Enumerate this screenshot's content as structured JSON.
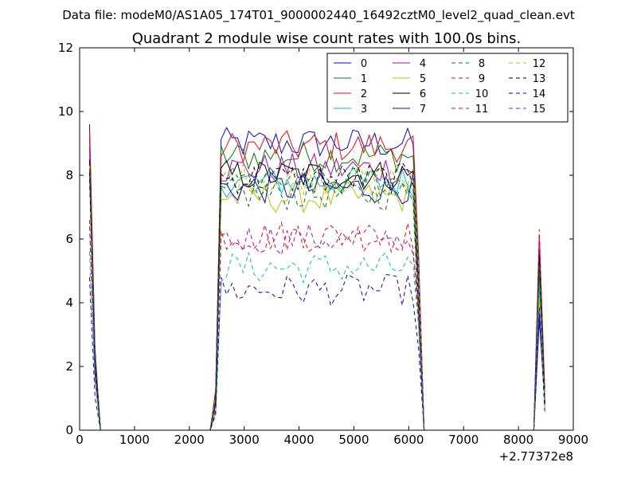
{
  "suptitle": "Data file: modeM0/AS1A05_174T01_9000002440_16492cztM0_level2_quad_clean.evt",
  "chart_data": {
    "type": "line",
    "title": "Quadrant 2 module wise count rates with 100.0s bins.",
    "xlabel": "",
    "ylabel": "",
    "x_offset_label": "+2.77372e8",
    "xlim": [
      0,
      9000
    ],
    "ylim": [
      0,
      12
    ],
    "xticks": [
      0,
      1000,
      2000,
      3000,
      4000,
      5000,
      6000,
      7000,
      8000,
      9000
    ],
    "yticks": [
      0,
      2,
      4,
      6,
      8,
      10,
      12
    ],
    "xtick_labels": [
      "0",
      "1000",
      "2000",
      "3000",
      "4000",
      "5000",
      "6000",
      "7000",
      "8000",
      "9000"
    ],
    "ytick_labels": [
      "0",
      "2",
      "4",
      "6",
      "8",
      "10",
      "12"
    ],
    "grid": false,
    "legend_position": "top-right",
    "legend_columns": 4,
    "profile": {
      "x": [
        180,
        280,
        380,
        480,
        580,
        680,
        780,
        880,
        980,
        1080,
        1180,
        1280,
        1380,
        1480,
        1580,
        1680,
        1780,
        1880,
        1980,
        2080,
        2180,
        2280,
        2380,
        2480,
        2580,
        2680,
        2780,
        2880,
        2980,
        3080,
        3180,
        3280,
        3380,
        3480,
        3580,
        3680,
        3780,
        3880,
        3980,
        4080,
        4180,
        4280,
        4380,
        4480,
        4580,
        4680,
        4780,
        4880,
        4980,
        5080,
        5180,
        5280,
        5380,
        5480,
        5580,
        5680,
        5780,
        5880,
        5980,
        6080,
        6180,
        6280,
        6380,
        6480,
        6580,
        6680,
        6780,
        6880,
        6980,
        7080,
        7180,
        7280,
        7380,
        7480,
        7580,
        7680,
        7780,
        7880,
        7980,
        8080,
        8180,
        8280,
        8380,
        8480
      ],
      "shape": [
        1.0,
        0.27,
        0.0,
        0.0,
        0.0,
        0.0,
        0.0,
        0.0,
        0.0,
        0.0,
        0.0,
        0.0,
        0.0,
        0.0,
        0.0,
        0.0,
        0.0,
        0.0,
        0.0,
        0.0,
        0.0,
        0.0,
        0.0,
        0.12,
        1.0,
        1.0,
        1.0,
        1.0,
        1.0,
        1.0,
        1.0,
        1.0,
        1.0,
        1.0,
        1.0,
        1.0,
        1.0,
        1.0,
        1.0,
        1.0,
        1.0,
        1.0,
        1.0,
        1.0,
        1.0,
        1.0,
        1.0,
        1.0,
        1.0,
        1.0,
        1.0,
        1.0,
        1.0,
        1.0,
        1.0,
        1.0,
        1.0,
        1.0,
        1.0,
        1.0,
        0.55,
        0.0,
        0.0,
        0.0,
        0.0,
        0.0,
        0.0,
        0.0,
        0.0,
        0.0,
        0.0,
        0.0,
        0.0,
        0.0,
        0.0,
        0.0,
        0.0,
        0.0,
        0.0,
        0.0,
        0.0,
        0.0,
        0.65,
        0.12
      ]
    },
    "series": [
      {
        "name": "0",
        "color": "#0000ff",
        "style": "solid",
        "level": 9.0,
        "spike": 9.6
      },
      {
        "name": "1",
        "color": "#008000",
        "style": "solid",
        "level": 8.6,
        "spike": 9.2
      },
      {
        "name": "2",
        "color": "#ff0000",
        "style": "solid",
        "level": 8.9,
        "spike": 9.4
      },
      {
        "name": "3",
        "color": "#00bfbf",
        "style": "solid",
        "level": 7.8,
        "spike": 8.4
      },
      {
        "name": "4",
        "color": "#bf00bf",
        "style": "solid",
        "level": 8.2,
        "spike": 8.9
      },
      {
        "name": "5",
        "color": "#bfbf00",
        "style": "solid",
        "level": 7.3,
        "spike": 8.0
      },
      {
        "name": "6",
        "color": "#000000",
        "style": "solid",
        "level": 8.0,
        "spike": 8.5
      },
      {
        "name": "7",
        "color": "#0000ff",
        "style": "solid",
        "level": 7.6,
        "spike": 8.2
      },
      {
        "name": "8",
        "color": "#008000",
        "style": "dashed",
        "level": 7.4,
        "spike": 7.9
      },
      {
        "name": "9",
        "color": "#ff0000",
        "style": "dashed",
        "level": 6.1,
        "spike": 6.6
      },
      {
        "name": "10",
        "color": "#00bfbf",
        "style": "dashed",
        "level": 5.1,
        "spike": 5.6
      },
      {
        "name": "11",
        "color": "#bf00bf",
        "style": "dashed",
        "level": 6.0,
        "spike": 6.4
      },
      {
        "name": "12",
        "color": "#bfbf00",
        "style": "dashed",
        "level": 7.9,
        "spike": 8.3
      },
      {
        "name": "13",
        "color": "#000000",
        "style": "dashed",
        "level": 7.9,
        "spike": 8.1
      },
      {
        "name": "14",
        "color": "#0000ff",
        "style": "dashed",
        "level": 4.4,
        "spike": 4.8
      },
      {
        "name": "15",
        "color": "#008000",
        "style": "dashed",
        "level": 7.8,
        "spike": 8.2
      }
    ],
    "late_peak": {
      "x": 8380,
      "max_value": 6.3
    }
  }
}
